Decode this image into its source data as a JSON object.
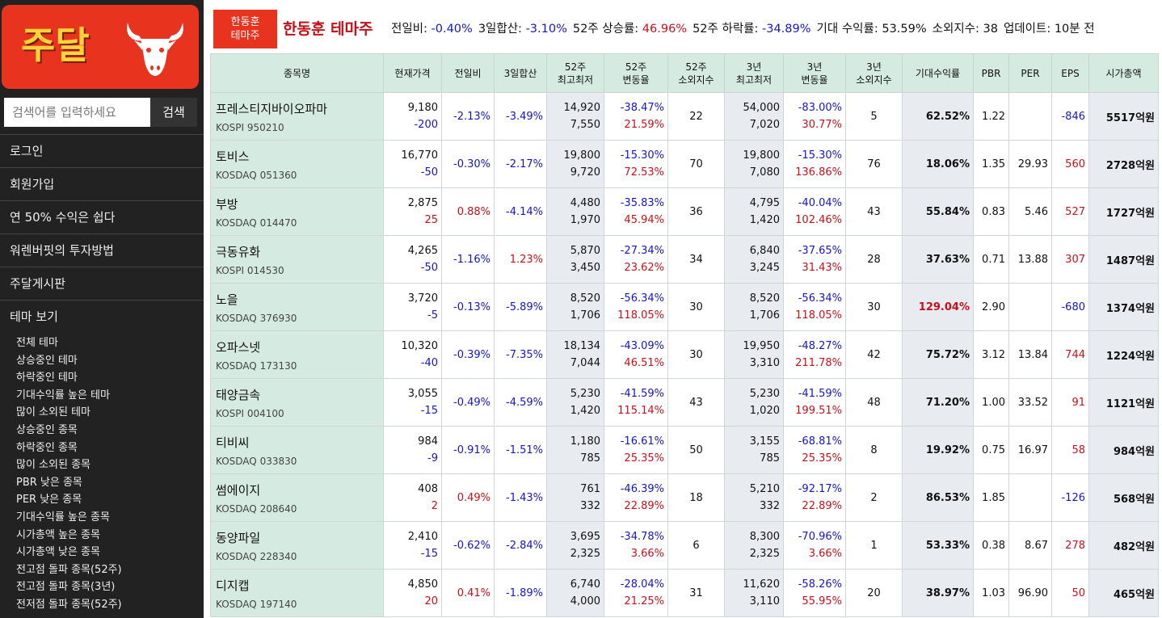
{
  "sidebar": {
    "logo": "주달",
    "search_placeholder": "검색어를 입력하세요",
    "search_button": "검색",
    "menu": [
      "로그인",
      "회원가입",
      "연 50% 수익은 쉽다",
      "워렌버핏의 투자방법",
      "주달게시판",
      "테마 보기"
    ],
    "submenu": [
      "전체 테마",
      "상승중인 테마",
      "하락중인 테마",
      "기대수익률 높은 테마",
      "많이 소외된 테마",
      "상승중인 종목",
      "하락중인 종목",
      "많이 소외된 종목",
      "PBR 낮은 종목",
      "PER 낮은 종목",
      "기대수익률 높은 종목",
      "시가총액 높은 종목",
      "시가총액 낮은 종목",
      "전고점 돌파 종목(52주)",
      "전고점 돌파 종목(3년)",
      "전저점 돌파 종목(52주)"
    ]
  },
  "header": {
    "badge": [
      "한동훈",
      "테마주"
    ],
    "title": "한동훈 테마주",
    "stats": [
      {
        "label": "전일비:",
        "value": "-0.40%",
        "color": "blue"
      },
      {
        "label": "3일합산:",
        "value": "-3.10%",
        "color": "blue"
      },
      {
        "label": "52주 상승률:",
        "value": "46.96%",
        "color": "red"
      },
      {
        "label": "52주 하락률:",
        "value": "-34.89%",
        "color": "blue"
      },
      {
        "label": "기대 수익률:",
        "value": "53.59%"
      },
      {
        "label": "소외지수:",
        "value": "38"
      },
      {
        "label": "업데이트:",
        "value": "10분 전"
      }
    ]
  },
  "table": {
    "columns": [
      [
        "종목명"
      ],
      [
        "현재가격"
      ],
      [
        "전일비"
      ],
      [
        "3일합산"
      ],
      [
        "52주",
        "최고최저"
      ],
      [
        "52주",
        "변동율"
      ],
      [
        "52주",
        "소외지수"
      ],
      [
        "3년",
        "최고최저"
      ],
      [
        "3년",
        "변동율"
      ],
      [
        "3년",
        "소외지수"
      ],
      [
        "기대수익률"
      ],
      [
        "PBR"
      ],
      [
        "PER"
      ],
      [
        "EPS"
      ],
      [
        "시가총액"
      ]
    ],
    "rows": [
      {
        "name": "프레스티지바이오파마",
        "code": "KOSPI 950210",
        "price": "9,180",
        "change": "-200",
        "d1": "-2.13%",
        "d3": "-3.49%",
        "hi52": "14,920",
        "lo52": "7,550",
        "fall52": "-38.47%",
        "rise52": "21.59%",
        "neg52": "22",
        "hi3": "54,000",
        "lo3": "7,020",
        "fall3": "-83.00%",
        "rise3": "30.77%",
        "neg3": "5",
        "exp": "62.52%",
        "pbr": "1.22",
        "per": null,
        "eps": "-846",
        "cap": "5517억원"
      },
      {
        "name": "토비스",
        "code": "KOSDAQ 051360",
        "price": "16,770",
        "change": "-50",
        "d1": "-0.30%",
        "d3": "-2.17%",
        "hi52": "19,800",
        "lo52": "9,720",
        "fall52": "-15.30%",
        "rise52": "72.53%",
        "neg52": "70",
        "hi3": "19,800",
        "lo3": "7,080",
        "fall3": "-15.30%",
        "rise3": "136.86%",
        "neg3": "76",
        "exp": "18.06%",
        "pbr": "1.35",
        "per": "29.93",
        "eps": "560",
        "cap": "2728억원"
      },
      {
        "name": "부방",
        "code": "KOSDAQ 014470",
        "price": "2,875",
        "change": "25",
        "d1": "0.88%",
        "d3": "-4.14%",
        "hi52": "4,480",
        "lo52": "1,970",
        "fall52": "-35.83%",
        "rise52": "45.94%",
        "neg52": "36",
        "hi3": "4,795",
        "lo3": "1,420",
        "fall3": "-40.04%",
        "rise3": "102.46%",
        "neg3": "43",
        "exp": "55.84%",
        "pbr": "0.83",
        "per": "5.46",
        "eps": "527",
        "cap": "1727억원"
      },
      {
        "name": "극동유화",
        "code": "KOSPI 014530",
        "price": "4,265",
        "change": "-50",
        "d1": "-1.16%",
        "d3": "1.23%",
        "hi52": "5,870",
        "lo52": "3,450",
        "fall52": "-27.34%",
        "rise52": "23.62%",
        "neg52": "34",
        "hi3": "6,840",
        "lo3": "3,245",
        "fall3": "-37.65%",
        "rise3": "31.43%",
        "neg3": "28",
        "exp": "37.63%",
        "pbr": "0.71",
        "per": "13.88",
        "eps": "307",
        "cap": "1487억원"
      },
      {
        "name": "노을",
        "code": "KOSDAQ 376930",
        "price": "3,720",
        "change": "-5",
        "d1": "-0.13%",
        "d3": "-5.89%",
        "hi52": "8,520",
        "lo52": "1,706",
        "fall52": "-56.34%",
        "rise52": "118.05%",
        "neg52": "30",
        "hi3": "8,520",
        "lo3": "1,706",
        "fall3": "-56.34%",
        "rise3": "118.05%",
        "neg3": "30",
        "exp": "129.04%",
        "pbr": "2.90",
        "per": null,
        "eps": "-680",
        "cap": "1374억원"
      },
      {
        "name": "오파스넷",
        "code": "KOSDAQ 173130",
        "price": "10,320",
        "change": "-40",
        "d1": "-0.39%",
        "d3": "-7.35%",
        "hi52": "18,134",
        "lo52": "7,044",
        "fall52": "-43.09%",
        "rise52": "46.51%",
        "neg52": "30",
        "hi3": "19,950",
        "lo3": "3,310",
        "fall3": "-48.27%",
        "rise3": "211.78%",
        "neg3": "42",
        "exp": "75.72%",
        "pbr": "3.12",
        "per": "13.84",
        "eps": "744",
        "cap": "1224억원"
      },
      {
        "name": "태양금속",
        "code": "KOSPI 004100",
        "price": "3,055",
        "change": "-15",
        "d1": "-0.49%",
        "d3": "-4.59%",
        "hi52": "5,230",
        "lo52": "1,420",
        "fall52": "-41.59%",
        "rise52": "115.14%",
        "neg52": "43",
        "hi3": "5,230",
        "lo3": "1,020",
        "fall3": "-41.59%",
        "rise3": "199.51%",
        "neg3": "48",
        "exp": "71.20%",
        "pbr": "1.00",
        "per": "33.52",
        "eps": "91",
        "cap": "1121억원"
      },
      {
        "name": "티비씨",
        "code": "KOSDAQ 033830",
        "price": "984",
        "change": "-9",
        "d1": "-0.91%",
        "d3": "-1.51%",
        "hi52": "1,180",
        "lo52": "785",
        "fall52": "-16.61%",
        "rise52": "25.35%",
        "neg52": "50",
        "hi3": "3,155",
        "lo3": "785",
        "fall3": "-68.81%",
        "rise3": "25.35%",
        "neg3": "8",
        "exp": "19.92%",
        "pbr": "0.75",
        "per": "16.97",
        "eps": "58",
        "cap": "984억원"
      },
      {
        "name": "썸에이지",
        "code": "KOSDAQ 208640",
        "price": "408",
        "change": "2",
        "d1": "0.49%",
        "d3": "-1.43%",
        "hi52": "761",
        "lo52": "332",
        "fall52": "-46.39%",
        "rise52": "22.89%",
        "neg52": "18",
        "hi3": "5,210",
        "lo3": "332",
        "fall3": "-92.17%",
        "rise3": "22.89%",
        "neg3": "2",
        "exp": "86.53%",
        "pbr": "1.85",
        "per": null,
        "eps": "-126",
        "cap": "568억원"
      },
      {
        "name": "동양파일",
        "code": "KOSDAQ 228340",
        "price": "2,410",
        "change": "-15",
        "d1": "-0.62%",
        "d3": "-2.84%",
        "hi52": "3,695",
        "lo52": "2,325",
        "fall52": "-34.78%",
        "rise52": "3.66%",
        "neg52": "6",
        "hi3": "8,300",
        "lo3": "2,325",
        "fall3": "-70.96%",
        "rise3": "3.66%",
        "neg3": "1",
        "exp": "53.33%",
        "pbr": "0.38",
        "per": "8.67",
        "eps": "278",
        "cap": "482억원"
      },
      {
        "name": "디지캡",
        "code": "KOSDAQ 197140",
        "price": "4,850",
        "change": "20",
        "d1": "0.41%",
        "d3": "-1.89%",
        "hi52": "6,740",
        "lo52": "4,000",
        "fall52": "-28.04%",
        "rise52": "21.25%",
        "neg52": "31",
        "hi3": "11,620",
        "lo3": "3,110",
        "fall3": "-58.26%",
        "rise3": "55.95%",
        "neg3": "20",
        "exp": "38.97%",
        "pbr": "1.03",
        "per": "96.90",
        "eps": "50",
        "cap": "465억원"
      }
    ]
  }
}
